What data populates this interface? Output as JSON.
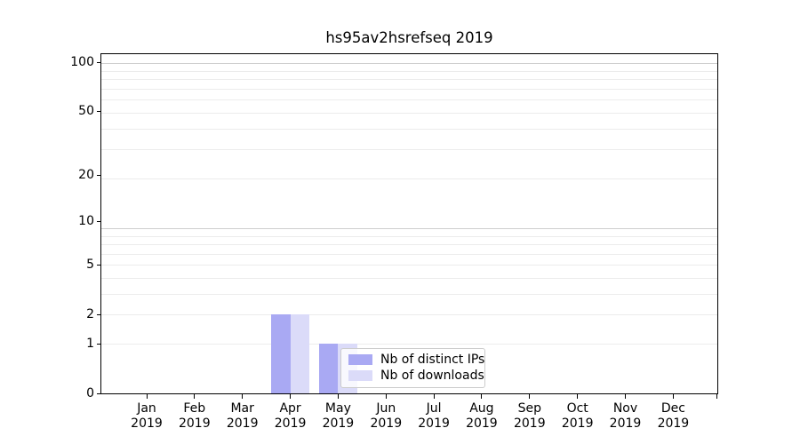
{
  "figure": {
    "title": "hs95av2hsrefseq 2019",
    "background_color": "#ffffff"
  },
  "chart_data": {
    "type": "bar",
    "title": "hs95av2hsrefseq 2019",
    "categories": [
      "Jan 2019",
      "Feb 2019",
      "Mar 2019",
      "Apr 2019",
      "May 2019",
      "Jun 2019",
      "Jul 2019",
      "Aug 2019",
      "Sep 2019",
      "Oct 2019",
      "Nov 2019",
      "Dec 2019"
    ],
    "series": [
      {
        "name": "Nb of distinct IPs",
        "color": "#a9a9f3",
        "values": [
          0,
          0,
          0,
          2,
          1,
          0,
          0,
          0,
          0,
          0,
          0,
          0
        ]
      },
      {
        "name": "Nb of downloads",
        "color": "#dbdbf9",
        "values": [
          0,
          0,
          0,
          2,
          1,
          0,
          0,
          0,
          0,
          0,
          0,
          0
        ]
      }
    ],
    "xlabel": "",
    "ylabel": "",
    "y_scale": "log10(value+1)",
    "y_tick_values": [
      0,
      1,
      2,
      5,
      10,
      20,
      50,
      100
    ],
    "ylim": [
      0,
      112
    ],
    "grid": "horizontal, log minor lines",
    "grid_minor_color": "#ececec",
    "grid_major_color": "#cfcfcf",
    "axis_color": "#000000",
    "legend_position": "lower center, inside axes"
  }
}
